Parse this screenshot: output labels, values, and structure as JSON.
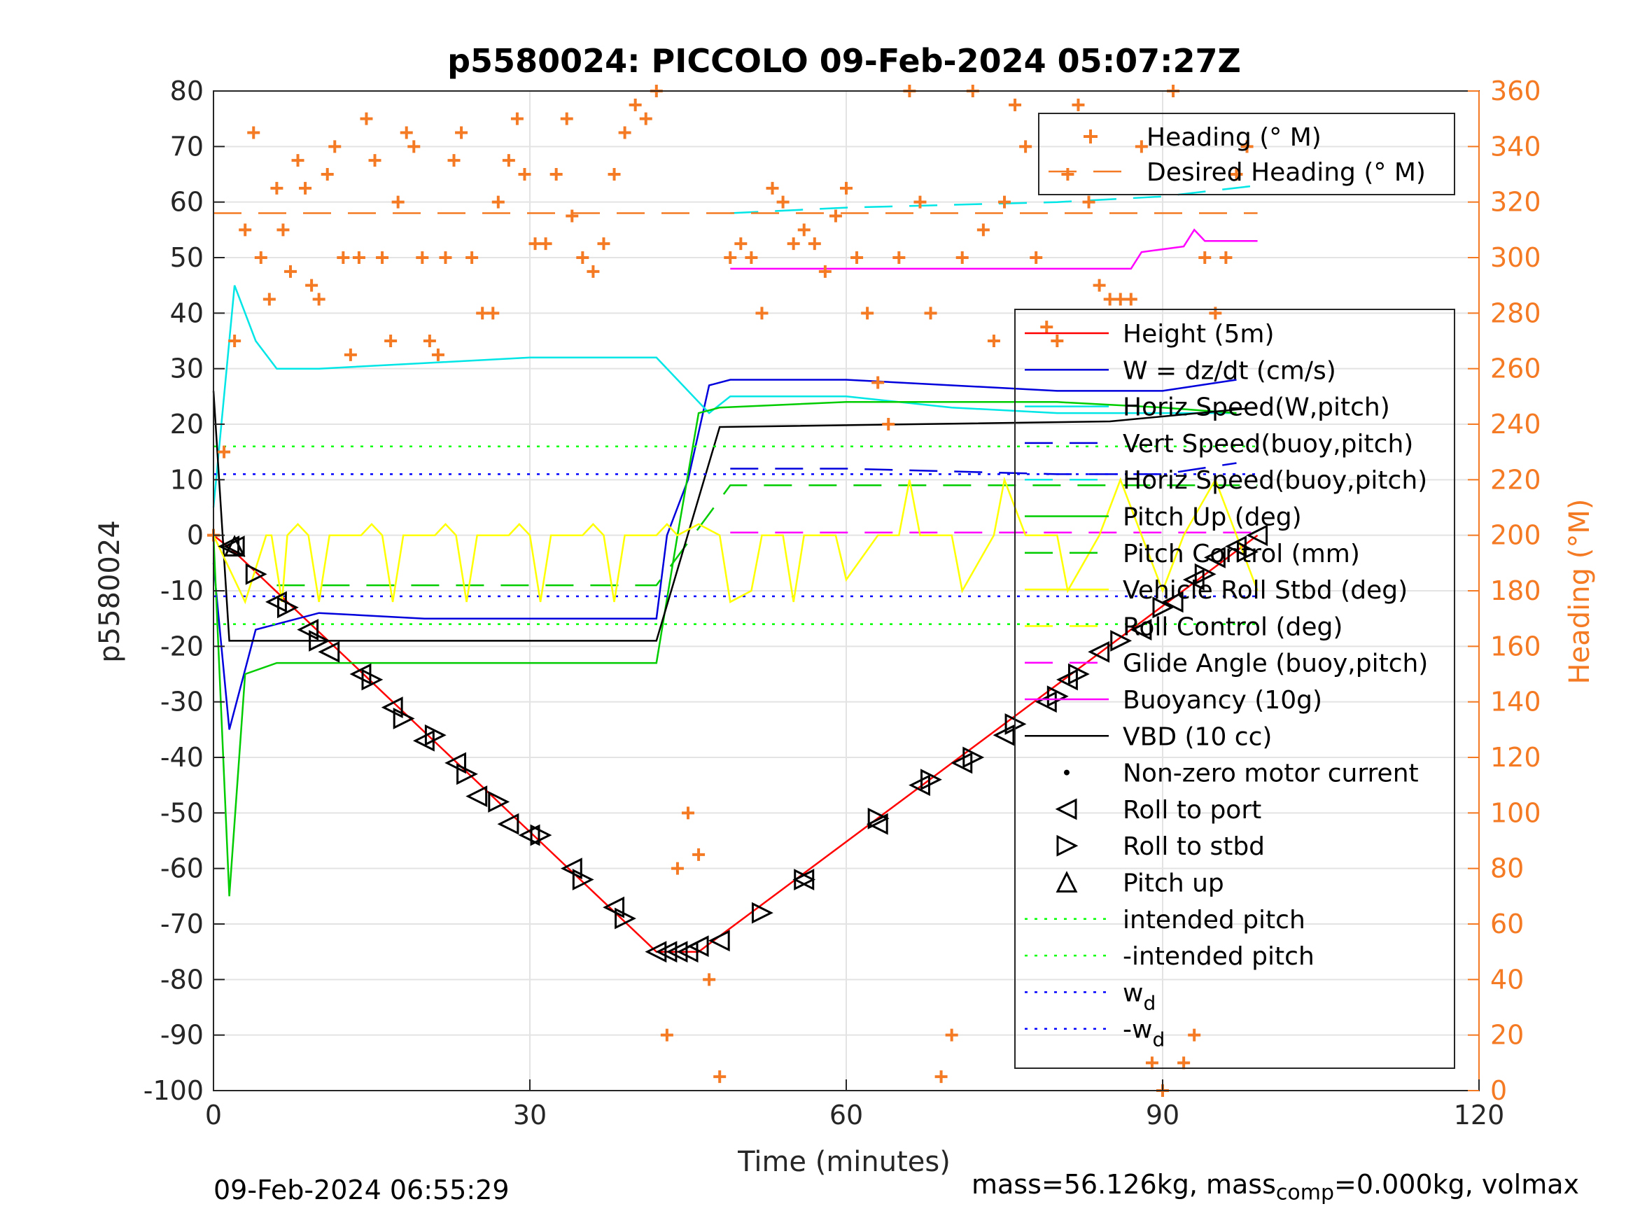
{
  "chart_data": {
    "type": "line",
    "title": "p5580024: PICCOLO 09-Feb-2024 05:07:27Z",
    "xlabel": "Time (minutes)",
    "ylabel_left": "p5580024",
    "ylabel_right": "Heading (°M)",
    "xlim": [
      0,
      120
    ],
    "ylim_left": [
      -100,
      80
    ],
    "ylim_right": [
      0,
      360
    ],
    "x_ticks": [
      "0",
      "30",
      "60",
      "90",
      "120"
    ],
    "y_ticks_left": [
      "80",
      "70",
      "60",
      "50",
      "40",
      "30",
      "20",
      "10",
      "0",
      "-10",
      "-20",
      "-30",
      "-40",
      "-50",
      "-60",
      "-70",
      "-80",
      "-90",
      "-100"
    ],
    "y_ticks_right": [
      "360",
      "340",
      "320",
      "300",
      "280",
      "260",
      "240",
      "220",
      "200",
      "180",
      "160",
      "140",
      "120",
      "100",
      "80",
      "60",
      "40",
      "20",
      "0"
    ],
    "grid": true,
    "legend_heading": [
      {
        "label": "Heading (° M)",
        "color": "#f47a24",
        "style": "plus"
      },
      {
        "label": "Desired Heading (° M)",
        "color": "#f47a24",
        "style": "dashed"
      }
    ],
    "legend_main": [
      {
        "label": "Height (5m)",
        "color": "#ff0000",
        "style": "solid"
      },
      {
        "label": "W = dz/dt (cm/s)",
        "color": "#0000dd",
        "style": "solid"
      },
      {
        "label": "Horiz Speed(W,pitch)",
        "color": "#00e5e5",
        "style": "solid"
      },
      {
        "label": "Vert Speed(buoy,pitch)",
        "color": "#0000dd",
        "style": "dashed"
      },
      {
        "label": "Horiz Speed(buoy,pitch)",
        "color": "#00e5e5",
        "style": "dashed"
      },
      {
        "label": "Pitch Up (deg)",
        "color": "#00cc00",
        "style": "solid"
      },
      {
        "label": "Pitch Control (mm)",
        "color": "#00cc00",
        "style": "dashed"
      },
      {
        "label": "Vehicle Roll Stbd (deg)",
        "color": "#ffff00",
        "style": "solid"
      },
      {
        "label": "Roll Control (deg)",
        "color": "#ffff00",
        "style": "dashed"
      },
      {
        "label": "Glide Angle (buoy,pitch)",
        "color": "#ff00ff",
        "style": "dashed"
      },
      {
        "label": "Buoyancy (10g)",
        "color": "#ff00ff",
        "style": "solid"
      },
      {
        "label": "VBD (10 cc)",
        "color": "#000000",
        "style": "solid"
      },
      {
        "label": "Non-zero motor current",
        "color": "#000000",
        "style": "dot"
      },
      {
        "label": "Roll to port",
        "color": "#000000",
        "style": "tri-left"
      },
      {
        "label": "Roll to stbd",
        "color": "#000000",
        "style": "tri-right"
      },
      {
        "label": "Pitch up",
        "color": "#000000",
        "style": "tri-up"
      },
      {
        "label": "intended pitch",
        "color": "#00ff00",
        "style": "dotted"
      },
      {
        "label": "-intended pitch",
        "color": "#00ff00",
        "style": "dotted"
      },
      {
        "label": "w",
        "sub": "d",
        "color": "#0000ff",
        "style": "dotted"
      },
      {
        "label": "-w",
        "sub": "d",
        "color": "#0000ff",
        "style": "dotted"
      }
    ],
    "series": [
      {
        "name": "Height (5m)",
        "axis": "left",
        "color": "#ff0000",
        "x": [
          0,
          2,
          42,
          44,
          46,
          99
        ],
        "y": [
          0,
          -3,
          -75,
          -75,
          -75,
          0
        ]
      },
      {
        "name": "W = dz/dt (cm/s)",
        "axis": "left",
        "color": "#0000dd",
        "x": [
          0,
          1.5,
          4,
          10,
          20,
          30,
          42,
          43,
          45,
          47,
          49,
          60,
          80,
          90,
          97
        ],
        "y": [
          -5,
          -35,
          -17,
          -14,
          -15,
          -15,
          -15,
          0,
          10,
          27,
          28,
          28,
          26,
          26,
          28
        ]
      },
      {
        "name": "Horiz Speed(W,pitch)",
        "axis": "left",
        "color": "#00e5e5",
        "x": [
          0,
          2,
          4,
          6,
          10,
          20,
          30,
          42,
          47,
          49,
          60,
          70,
          80,
          90,
          97
        ],
        "y": [
          5,
          45,
          35,
          30,
          30,
          31,
          32,
          32,
          22,
          25,
          25,
          23,
          22,
          22,
          22
        ]
      },
      {
        "name": "Vert Speed(buoy,pitch)",
        "axis": "left",
        "color": "#0000dd",
        "x": [
          49,
          60,
          80,
          90,
          97
        ],
        "y": [
          12,
          12,
          11,
          11,
          13
        ]
      },
      {
        "name": "Horiz Speed(buoy,pitch)",
        "axis": "left",
        "color": "#00e5e5",
        "x": [
          49,
          60,
          80,
          90,
          99
        ],
        "y": [
          58,
          59,
          60,
          61,
          63
        ]
      },
      {
        "name": "Pitch Up (deg)",
        "axis": "left",
        "color": "#00cc00",
        "x": [
          0,
          1.5,
          3,
          6,
          20,
          30,
          42,
          44,
          46,
          48,
          60,
          80,
          90,
          97
        ],
        "y": [
          0,
          -65,
          -25,
          -23,
          -23,
          -23,
          -23,
          0,
          22,
          23,
          24,
          24,
          23,
          22
        ]
      },
      {
        "name": "Pitch Control (mm)",
        "axis": "left",
        "color": "#00cc00",
        "x": [
          6,
          42,
          49,
          99
        ],
        "y": [
          -9,
          -9,
          9,
          9
        ]
      },
      {
        "name": "Glide Angle (buoy,pitch)",
        "axis": "left",
        "color": "#ff00ff",
        "x": [
          49,
          99
        ],
        "y": [
          0.5,
          0.5
        ]
      },
      {
        "name": "Buoyancy (10g)",
        "axis": "left",
        "color": "#ff00ff",
        "x": [
          49,
          70,
          87,
          88,
          92,
          93,
          94,
          99
        ],
        "y": [
          48,
          48,
          48,
          51,
          52,
          55,
          53,
          53
        ]
      },
      {
        "name": "VBD (10 cc)",
        "axis": "left",
        "color": "#000000",
        "x": [
          0,
          1.5,
          3,
          42,
          48,
          85,
          99
        ],
        "y": [
          26,
          -19,
          -19,
          -19,
          19.5,
          20.5,
          23
        ]
      },
      {
        "name": "intended pitch",
        "axis": "left",
        "color": "#00ff00",
        "x": [
          0,
          99
        ],
        "y": [
          16,
          16
        ]
      },
      {
        "name": "-intended pitch",
        "axis": "left",
        "color": "#00ff00",
        "x": [
          0,
          99
        ],
        "y": [
          -16,
          -16
        ]
      },
      {
        "name": "w_d",
        "axis": "left",
        "color": "#0000ff",
        "x": [
          0,
          99
        ],
        "y": [
          11,
          11
        ]
      },
      {
        "name": "-w_d",
        "axis": "left",
        "color": "#0000ff",
        "x": [
          0,
          99
        ],
        "y": [
          -11,
          -11
        ]
      },
      {
        "name": "Desired Heading (° M)",
        "axis": "right",
        "color": "#f47a24",
        "x": [
          0,
          99
        ],
        "y": [
          316,
          316
        ]
      },
      {
        "name": "Heading (° M)",
        "axis": "right",
        "color": "#f47a24",
        "x": [
          0,
          1,
          2,
          3,
          3.8,
          4.5,
          5.3,
          6,
          6.6,
          7.3,
          8,
          8.7,
          9.3,
          10,
          10.8,
          11.5,
          12.3,
          13,
          13.8,
          14.5,
          15.3,
          16,
          16.8,
          17.5,
          18.3,
          19,
          19.8,
          20.5,
          21.3,
          22,
          22.8,
          23.5,
          24.5,
          25.5,
          26.5,
          27,
          28,
          28.8,
          29.5,
          30.5,
          31.5,
          32.5,
          33.5,
          34,
          35,
          36,
          37,
          38,
          39,
          40,
          41,
          42,
          43,
          44,
          45,
          46,
          47,
          48,
          49,
          50,
          51,
          52,
          53,
          54,
          55,
          56,
          57,
          58,
          59,
          60,
          61,
          62,
          63,
          64,
          65,
          66,
          67,
          68,
          69,
          70,
          71,
          72,
          73,
          74,
          75,
          76,
          77,
          78,
          79,
          80,
          81,
          82,
          83,
          84,
          85,
          86,
          87,
          88,
          89,
          90,
          91,
          92,
          93,
          94,
          95,
          96,
          97,
          98
        ],
        "y": [
          200,
          230,
          270,
          310,
          345,
          300,
          285,
          325,
          310,
          295,
          335,
          325,
          290,
          285,
          330,
          340,
          300,
          265,
          300,
          350,
          335,
          300,
          270,
          320,
          345,
          340,
          300,
          270,
          265,
          300,
          335,
          345,
          300,
          280,
          280,
          320,
          335,
          350,
          330,
          305,
          305,
          330,
          350,
          315,
          300,
          295,
          305,
          330,
          345,
          355,
          350,
          360,
          20,
          80,
          100,
          85,
          40,
          5,
          300,
          305,
          300,
          280,
          325,
          320,
          305,
          310,
          305,
          295,
          315,
          325,
          300,
          280,
          255,
          240,
          300,
          360,
          320,
          280,
          5,
          20,
          300,
          360,
          310,
          270,
          320,
          355,
          340,
          300,
          275,
          270,
          330,
          355,
          320,
          290,
          285,
          285,
          285,
          340,
          10,
          0,
          360,
          10,
          20,
          300,
          280,
          300,
          330,
          340
        ]
      },
      {
        "name": "Vehicle Roll Stbd (deg)",
        "axis": "left",
        "color": "#ffff00",
        "style": "solid",
        "x": [
          0,
          2,
          3,
          5,
          5.5,
          6.5,
          7,
          8,
          9,
          10,
          11,
          14,
          15,
          16,
          17,
          18,
          21,
          22,
          23,
          24,
          25,
          28,
          29,
          30,
          31,
          32,
          35,
          36,
          37,
          38,
          39,
          42,
          43,
          44,
          46,
          48,
          49,
          51,
          52,
          54,
          55,
          56,
          59,
          60,
          63,
          65,
          66,
          67,
          70,
          71,
          74,
          75,
          77,
          80,
          81,
          84,
          86,
          88,
          90,
          92,
          95,
          97,
          99
        ],
        "y": [
          0,
          -8,
          -12,
          0,
          0,
          -12,
          0,
          2,
          0,
          -12,
          0,
          0,
          2,
          0,
          -12,
          0,
          0,
          2,
          0,
          -12,
          0,
          0,
          2,
          0,
          -12,
          0,
          0,
          2,
          0,
          -12,
          0,
          0,
          2,
          0,
          2,
          0,
          -12,
          -10,
          0,
          0,
          -12,
          0,
          0,
          -8,
          0,
          0,
          10,
          0,
          0,
          -10,
          0,
          10,
          0,
          0,
          -10,
          0,
          10,
          0,
          -10,
          0,
          10,
          0,
          -10
        ]
      }
    ],
    "markers": {
      "roll_to_port": {
        "x": [
          1.5,
          2,
          6,
          9,
          11,
          14,
          17,
          20,
          23,
          25,
          28,
          30,
          34,
          38,
          42,
          43,
          44,
          45,
          46,
          48,
          56,
          63,
          67,
          71,
          75,
          79,
          81,
          84,
          88,
          91,
          93,
          95,
          97,
          99
        ],
        "y": [
          -2,
          -2,
          -12,
          -17,
          -21,
          -25,
          -31,
          -37,
          -41,
          -47,
          -52,
          -54,
          -60,
          -67,
          -75,
          -75,
          -75,
          -75,
          -74,
          -73,
          -62,
          -52,
          -45,
          -41,
          -36,
          -30,
          -26,
          -21,
          -17,
          -12,
          -8,
          -4,
          -2,
          0
        ]
      },
      "roll_to_stbd": {
        "x": [
          4,
          7,
          10,
          15,
          18,
          21,
          24,
          27,
          31,
          35,
          39,
          52,
          56,
          63,
          68,
          72,
          76,
          80,
          82,
          86,
          90,
          94,
          98
        ],
        "y": [
          -7,
          -13,
          -19,
          -26,
          -33,
          -36,
          -43,
          -48,
          -54,
          -62,
          -69,
          -68,
          -62,
          -51,
          -44,
          -40,
          -34,
          -29,
          -25,
          -19,
          -13,
          -7,
          -3
        ]
      },
      "pitch_up": {
        "x": [
          2
        ],
        "y": [
          -2
        ]
      }
    }
  },
  "footer": {
    "timestamp": "09-Feb-2024 06:55:29",
    "mass_prefix": "mass=56.126kg, mass",
    "mass_sub": "comp",
    "mass_suffix": "=0.000kg, volmax"
  }
}
